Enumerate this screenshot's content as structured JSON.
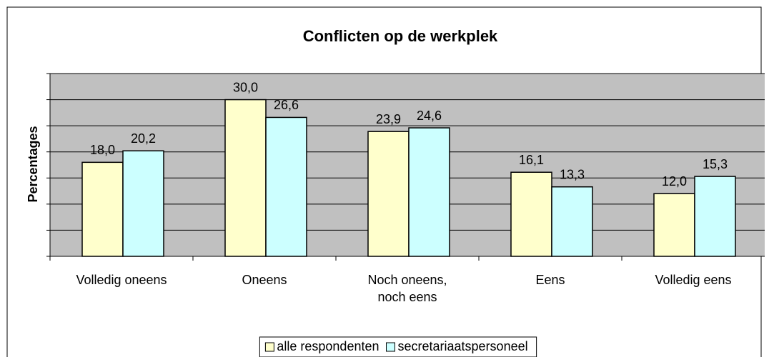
{
  "chart_data": {
    "type": "bar",
    "title": "Conflicten op de werkplek",
    "y_label": "Percentages",
    "categories": [
      "Volledig oneens",
      "Oneens",
      "Noch oneens, noch eens",
      "Eens",
      "Volledig eens"
    ],
    "series": [
      {
        "name": "alle respondenten",
        "color": "#ffffcc",
        "values": [
          18.0,
          30.0,
          23.9,
          16.1,
          12.0
        ],
        "value_labels": [
          "18,0",
          "30,0",
          "23,9",
          "16,1",
          "12,0"
        ]
      },
      {
        "name": "secretariaatspersoneel",
        "color": "#ccffff",
        "values": [
          20.2,
          26.6,
          24.6,
          13.3,
          15.3
        ],
        "value_labels": [
          "20,2",
          "26,6",
          "24,6",
          "13,3",
          "15,3"
        ]
      }
    ],
    "ylim": [
      0,
      35
    ],
    "yticks": [
      0,
      5,
      10,
      15,
      20,
      25,
      30,
      35
    ],
    "grid": true,
    "plot_background": "#c0c0c0",
    "legend": "bottom"
  }
}
